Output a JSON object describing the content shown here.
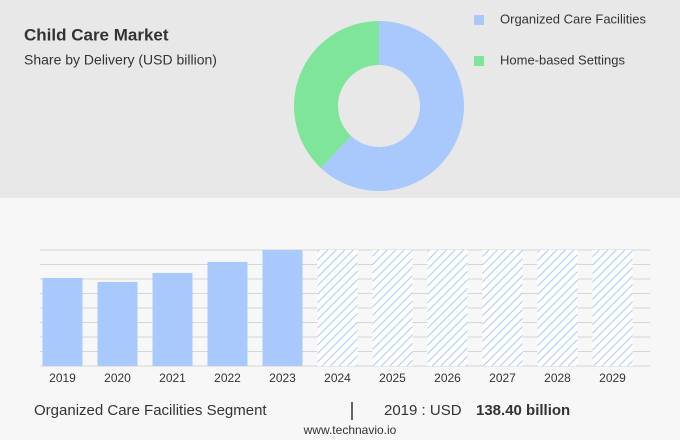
{
  "chart_data": [
    {
      "type": "donut",
      "title": "Child Care Market",
      "subtitle": "Share by Delivery (USD billion)",
      "categories": [
        "Organized Care Facilities",
        "Home-based Settings"
      ],
      "values": [
        62,
        38
      ],
      "colors": [
        "#a9c8fb",
        "#7ee59b"
      ]
    },
    {
      "type": "bar",
      "categories": [
        "2019",
        "2020",
        "2021",
        "2022",
        "2023",
        "2024",
        "2025",
        "2026",
        "2027",
        "2028",
        "2029"
      ],
      "values": [
        138.4,
        132.1,
        146.3,
        163.6,
        182.4,
        null,
        null,
        null,
        null,
        null,
        null
      ],
      "color": "#a9c8fb",
      "ylim": [
        0,
        182.4
      ],
      "yticks": [
        0,
        22.8,
        45.6,
        68.4,
        91.2,
        114,
        136.8,
        159.6,
        182.4
      ],
      "grid": true
    }
  ],
  "footer": {
    "segment": "Organized Care Facilities Segment",
    "year_label": "2019 : USD",
    "value": "138.40 billion",
    "source": "www.technavio.io"
  }
}
